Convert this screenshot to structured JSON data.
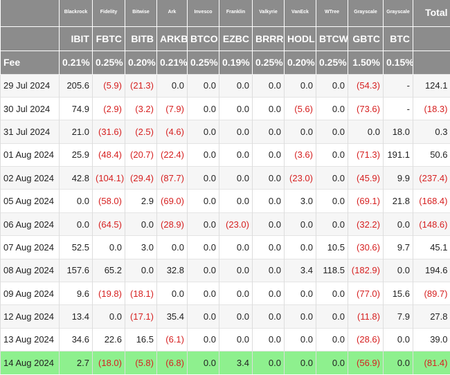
{
  "table": {
    "issuers": [
      "Blackrock",
      "Fidelity",
      "Bitwise",
      "Ark",
      "Invesco",
      "Franklin",
      "Valkyrie",
      "VanEck",
      "WTree",
      "Grayscale",
      "Grayscale"
    ],
    "total_label": "Total",
    "tickers": [
      "IBIT",
      "FBTC",
      "BITB",
      "ARKB",
      "BTCO",
      "EZBC",
      "BRRR",
      "HODL",
      "BTCW",
      "GBTC",
      "BTC"
    ],
    "fee_label": "Fee",
    "fees": [
      "0.21%",
      "0.25%",
      "0.20%",
      "0.21%",
      "0.25%",
      "0.19%",
      "0.25%",
      "0.20%",
      "0.25%",
      "1.50%",
      "0.15%"
    ],
    "rows": [
      {
        "date": "29 Jul 2024",
        "cells": [
          "205.6",
          "(5.9)",
          "(21.3)",
          "0.0",
          "0.0",
          "0.0",
          "0.0",
          "0.0",
          "0.0",
          "(54.3)",
          "-",
          "124.1"
        ]
      },
      {
        "date": "30 Jul 2024",
        "cells": [
          "74.9",
          "(2.9)",
          "(3.2)",
          "(7.9)",
          "0.0",
          "0.0",
          "0.0",
          "(5.6)",
          "0.0",
          "(73.6)",
          "-",
          "(18.3)"
        ]
      },
      {
        "date": "31 Jul 2024",
        "cells": [
          "21.0",
          "(31.6)",
          "(2.5)",
          "(4.6)",
          "0.0",
          "0.0",
          "0.0",
          "0.0",
          "0.0",
          "0.0",
          "18.0",
          "0.3"
        ]
      },
      {
        "date": "01 Aug 2024",
        "cells": [
          "25.9",
          "(48.4)",
          "(20.7)",
          "(22.4)",
          "0.0",
          "0.0",
          "0.0",
          "(3.6)",
          "0.0",
          "(71.3)",
          "191.1",
          "50.6"
        ]
      },
      {
        "date": "02 Aug 2024",
        "cells": [
          "42.8",
          "(104.1)",
          "(29.4)",
          "(87.7)",
          "0.0",
          "0.0",
          "0.0",
          "(23.0)",
          "0.0",
          "(45.9)",
          "9.9",
          "(237.4)"
        ]
      },
      {
        "date": "05 Aug 2024",
        "cells": [
          "0.0",
          "(58.0)",
          "2.9",
          "(69.0)",
          "0.0",
          "0.0",
          "0.0",
          "3.0",
          "0.0",
          "(69.1)",
          "21.8",
          "(168.4)"
        ]
      },
      {
        "date": "06 Aug 2024",
        "cells": [
          "0.0",
          "(64.5)",
          "0.0",
          "(28.9)",
          "0.0",
          "(23.0)",
          "0.0",
          "0.0",
          "0.0",
          "(32.2)",
          "0.0",
          "(148.6)"
        ]
      },
      {
        "date": "07 Aug 2024",
        "cells": [
          "52.5",
          "0.0",
          "3.0",
          "0.0",
          "0.0",
          "0.0",
          "0.0",
          "0.0",
          "10.5",
          "(30.6)",
          "9.7",
          "45.1"
        ]
      },
      {
        "date": "08 Aug 2024",
        "cells": [
          "157.6",
          "65.2",
          "0.0",
          "32.8",
          "0.0",
          "0.0",
          "0.0",
          "3.4",
          "118.5",
          "(182.9)",
          "0.0",
          "194.6"
        ]
      },
      {
        "date": "09 Aug 2024",
        "cells": [
          "9.6",
          "(19.8)",
          "(18.1)",
          "0.0",
          "0.0",
          "0.0",
          "0.0",
          "0.0",
          "0.0",
          "(77.0)",
          "15.6",
          "(89.7)"
        ]
      },
      {
        "date": "12 Aug 2024",
        "cells": [
          "13.4",
          "0.0",
          "(17.1)",
          "35.4",
          "0.0",
          "0.0",
          "0.0",
          "0.0",
          "0.0",
          "(11.8)",
          "7.9",
          "27.8"
        ]
      },
      {
        "date": "13 Aug 2024",
        "cells": [
          "34.6",
          "22.6",
          "16.5",
          "(6.1)",
          "0.0",
          "0.0",
          "0.0",
          "0.0",
          "0.0",
          "(28.6)",
          "0.0",
          "39.0"
        ]
      },
      {
        "date": "14 Aug 2024",
        "cells": [
          "2.7",
          "(18.0)",
          "(5.8)",
          "(6.8)",
          "0.0",
          "3.4",
          "0.0",
          "0.0",
          "0.0",
          "(56.9)",
          "0.0",
          "(81.4)"
        ]
      }
    ]
  }
}
